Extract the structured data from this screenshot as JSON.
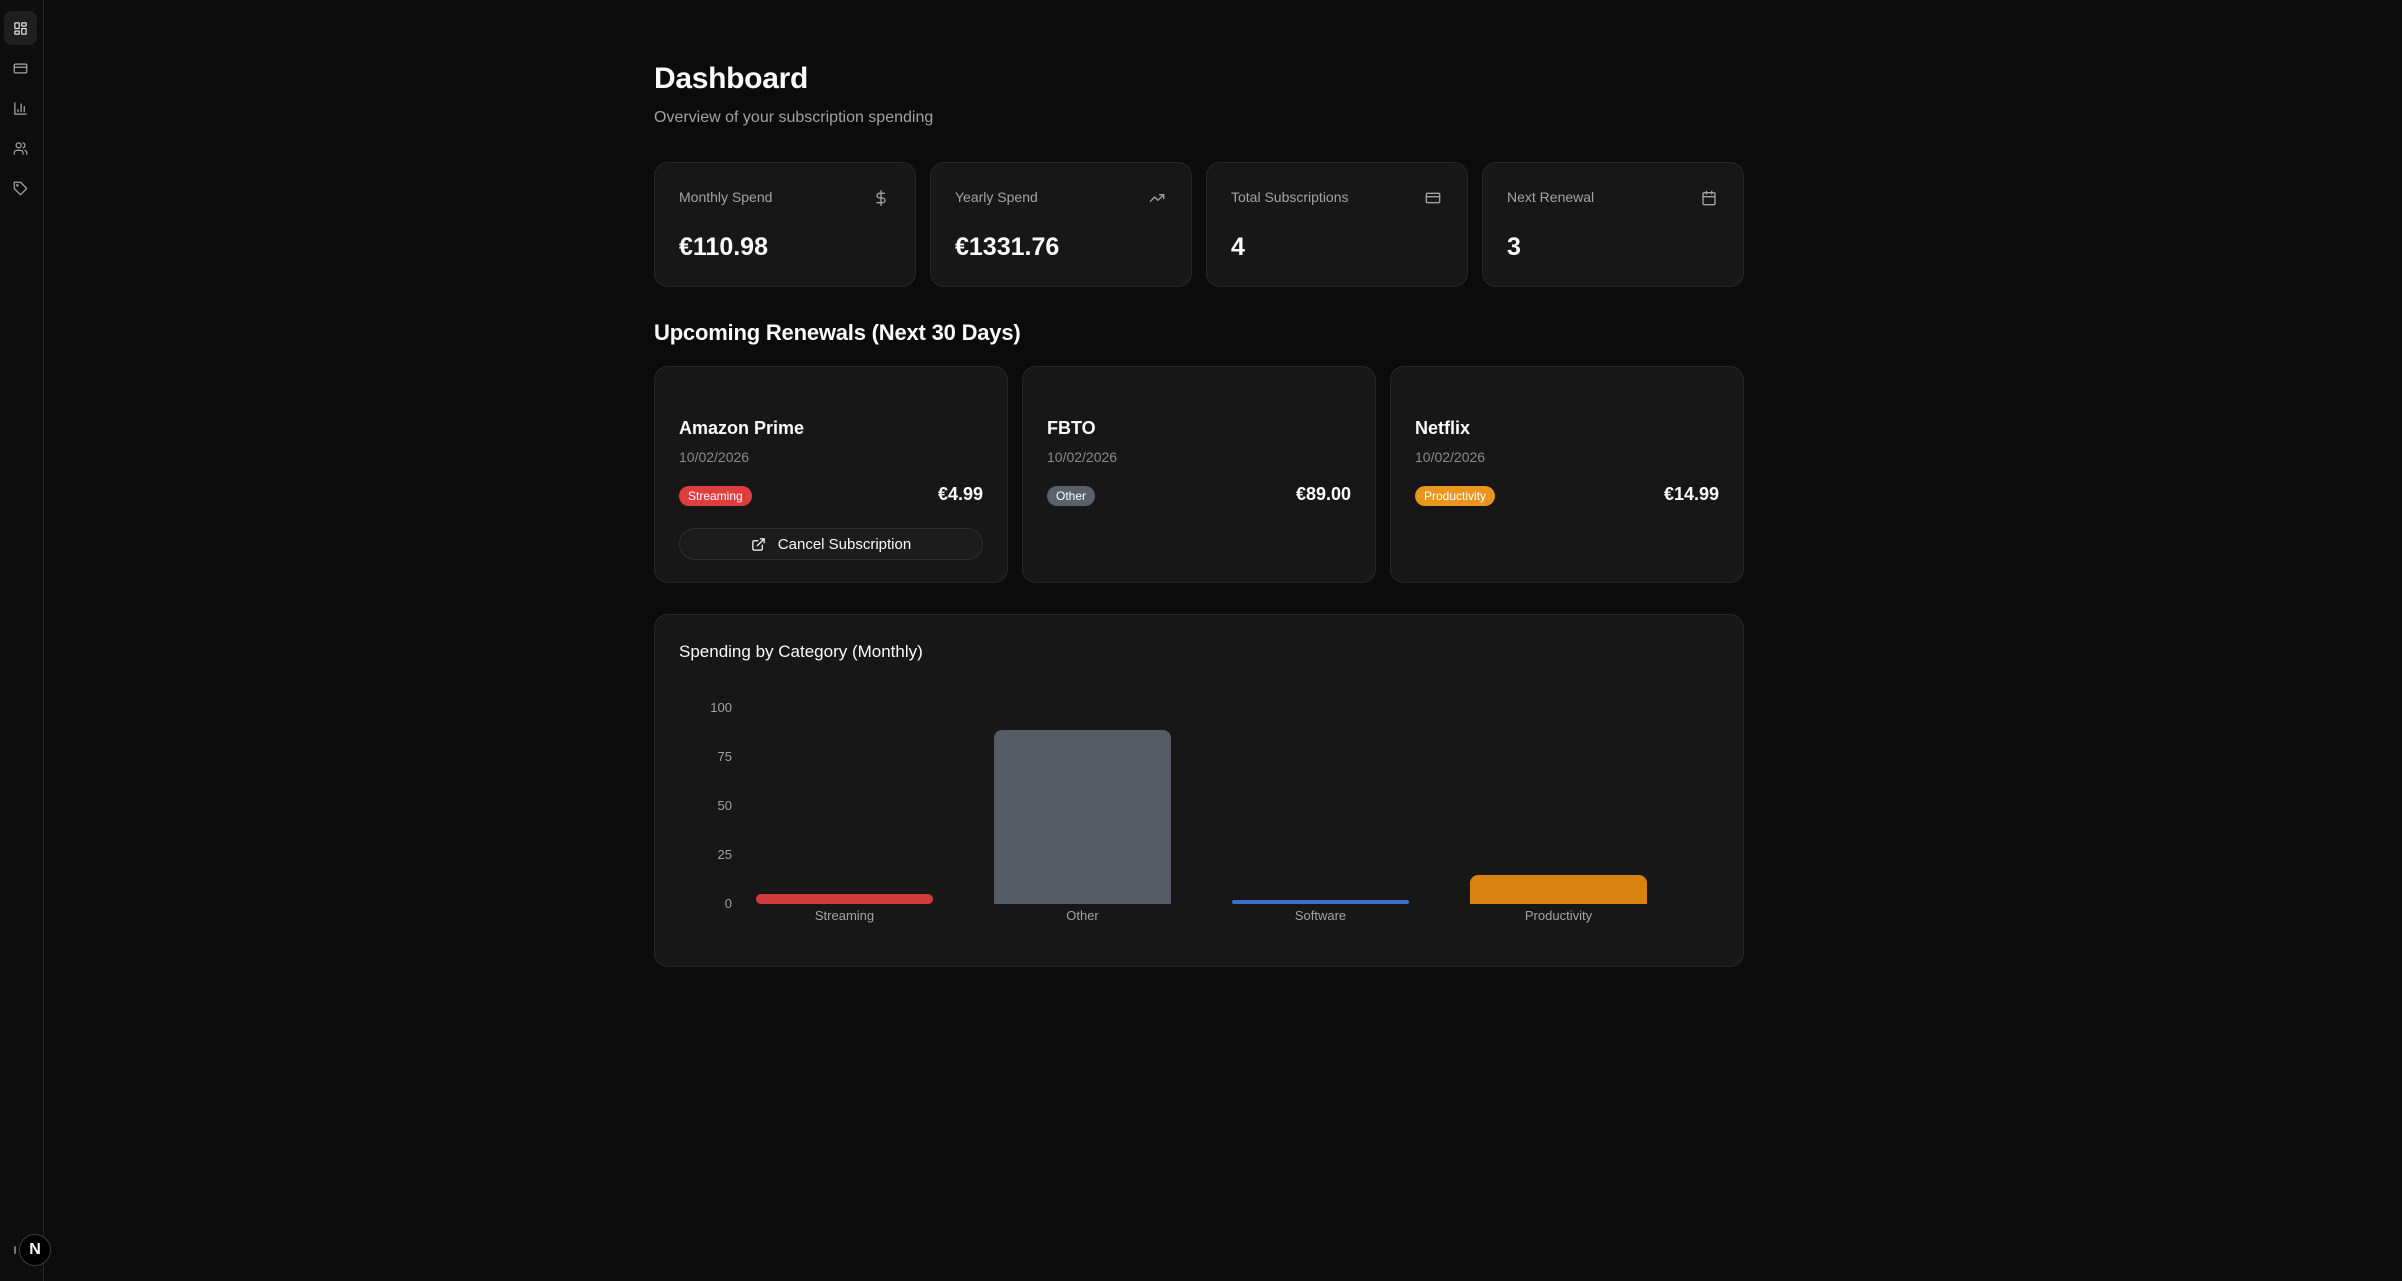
{
  "sidebar": {
    "items": [
      {
        "name": "dashboard",
        "icon": "layout-grid-icon",
        "active": true
      },
      {
        "name": "subscriptions",
        "icon": "credit-card-icon",
        "active": false
      },
      {
        "name": "analytics",
        "icon": "bar-chart-icon",
        "active": false
      },
      {
        "name": "users",
        "icon": "users-icon",
        "active": false
      },
      {
        "name": "categories",
        "icon": "tag-icon",
        "active": false
      }
    ],
    "logo_letter": "N"
  },
  "header": {
    "title": "Dashboard",
    "subtitle": "Overview of your subscription spending"
  },
  "stats": [
    {
      "label": "Monthly Spend",
      "value": "€110.98",
      "icon": "dollar-sign-icon"
    },
    {
      "label": "Yearly Spend",
      "value": "€1331.76",
      "icon": "trending-up-icon"
    },
    {
      "label": "Total Subscriptions",
      "value": "4",
      "icon": "credit-card-icon"
    },
    {
      "label": "Next Renewal",
      "value": "3",
      "icon": "calendar-icon"
    }
  ],
  "renewals": {
    "title": "Upcoming Renewals (Next 30 Days)",
    "items": [
      {
        "name": "Amazon Prime",
        "date": "10/02/2026",
        "category": "Streaming",
        "category_color": "#e03e3e",
        "price": "€4.99",
        "cancel_label": "Cancel Subscription"
      },
      {
        "name": "FBTO",
        "date": "10/02/2026",
        "category": "Other",
        "category_color": "#5b616b",
        "price": "€89.00"
      },
      {
        "name": "Netflix",
        "date": "10/02/2026",
        "category": "Productivity",
        "category_color": "#e8961c",
        "price": "€14.99"
      }
    ]
  },
  "chart": {
    "title": "Spending by Category (Monthly)"
  },
  "chart_data": {
    "type": "bar",
    "title": "Spending by Category (Monthly)",
    "categories": [
      "Streaming",
      "Other",
      "Software",
      "Productivity"
    ],
    "values": [
      4.99,
      89.0,
      2.0,
      14.99
    ],
    "colors": [
      "#d23b3b",
      "#545b64",
      "#3b6fc9",
      "#d6830f"
    ],
    "xlabel": "",
    "ylabel": "",
    "yticks": [
      0,
      25,
      50,
      75,
      100
    ],
    "ylim": [
      0,
      100
    ],
    "grid": false,
    "legend": "none"
  }
}
